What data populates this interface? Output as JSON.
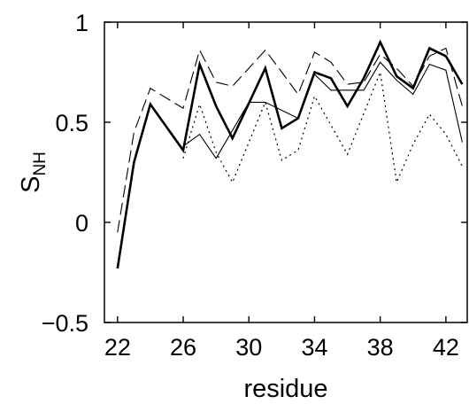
{
  "chart_data": {
    "type": "line",
    "xlabel": "residue",
    "ylabel_main": "S",
    "ylabel_sub": "NH",
    "xlim": [
      21.2,
      43.3
    ],
    "ylim": [
      -0.5,
      1.0
    ],
    "xticks": [
      22,
      26,
      30,
      34,
      38,
      42
    ],
    "yticks": [
      {
        "value": 1,
        "label": "1"
      },
      {
        "value": 0.5,
        "label": "0.5"
      },
      {
        "value": 0,
        "label": "0"
      },
      {
        "value": -0.5,
        "label": "−0.5"
      }
    ],
    "grid": false,
    "legend": "none",
    "series": [
      {
        "style": "thick-solid",
        "color": "#000000",
        "x": [
          22,
          23,
          24,
          26,
          27,
          28,
          29,
          31,
          32,
          33,
          34,
          35,
          36,
          37,
          38,
          39,
          40,
          41,
          42,
          43
        ],
        "y": [
          -0.23,
          0.3,
          0.59,
          0.36,
          0.79,
          0.58,
          0.42,
          0.77,
          0.47,
          0.52,
          0.75,
          0.72,
          0.58,
          0.72,
          0.9,
          0.73,
          0.67,
          0.87,
          0.83,
          0.69
        ]
      },
      {
        "style": "dashed",
        "color": "#000000",
        "x": [
          22,
          23,
          24,
          26,
          27,
          28,
          29,
          31,
          32,
          33,
          34,
          35,
          36,
          37,
          38,
          39,
          40,
          41,
          42,
          43
        ],
        "y": [
          -0.05,
          0.45,
          0.67,
          0.57,
          0.86,
          0.7,
          0.68,
          0.86,
          0.75,
          0.64,
          0.85,
          0.8,
          0.69,
          0.7,
          0.84,
          0.77,
          0.68,
          0.83,
          0.87,
          0.58
        ]
      },
      {
        "style": "thin-solid",
        "color": "#000000",
        "x": [
          26,
          27,
          28,
          30,
          31,
          33,
          34,
          35,
          36,
          37,
          38,
          39,
          40,
          41,
          42,
          43
        ],
        "y": [
          0.38,
          0.44,
          0.32,
          0.6,
          0.6,
          0.52,
          0.74,
          0.66,
          0.66,
          0.66,
          0.8,
          0.71,
          0.64,
          0.79,
          0.76,
          0.4
        ]
      },
      {
        "style": "dotted",
        "color": "#000000",
        "x": [
          26,
          27,
          28,
          29,
          31,
          32,
          33,
          34,
          36,
          38,
          39,
          40,
          41,
          42,
          43
        ],
        "y": [
          0.32,
          0.59,
          0.35,
          0.2,
          0.6,
          0.31,
          0.36,
          0.63,
          0.34,
          0.75,
          0.2,
          0.39,
          0.54,
          0.44,
          0.28
        ]
      }
    ]
  }
}
